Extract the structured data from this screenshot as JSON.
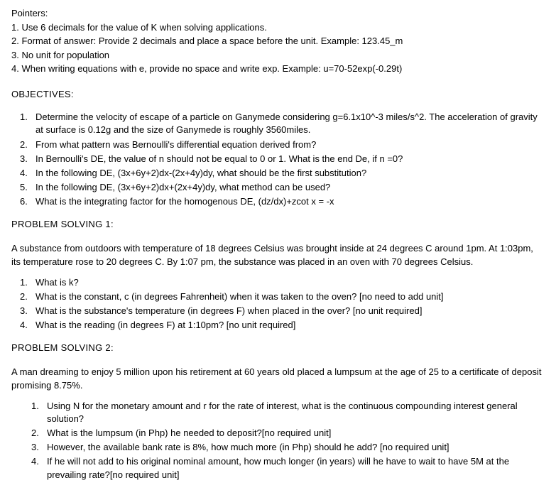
{
  "pointers": {
    "header": "Pointers:",
    "items": [
      "1. Use 6 decimals for the value of K when solving applications.",
      "2. Format of answer: Provide 2 decimals and place a space before the unit. Example: 123.45_m",
      "3. No unit for population",
      "4. When writing equations with e, provide no space and write exp.  Example: u=70-52exp(-0.29t)"
    ]
  },
  "objectivesHeader": "OBJECTIVES:",
  "objectives": [
    {
      "num": "1.",
      "txt": "Determine the velocity of escape of a particle on Ganymede considering g=6.1x10^-3 miles/s^2. The acceleration of gravity at surface is 0.12g and the size of Ganymede is roughly 3560miles."
    },
    {
      "num": "2.",
      "txt": "From what pattern was Bernoulli's differential equation derived from?"
    },
    {
      "num": "3.",
      "txt": "In Bernoulli's DE, the value of n should not be equal to 0 or 1. What is the end De, if n =0?"
    },
    {
      "num": "4.",
      "txt": "In the following DE, (3x+6y+2)dx-(2x+4y)dy, what should be the first substitution?"
    },
    {
      "num": "5.",
      "txt": "In the following DE, (3x+6y+2)dx+(2x+4y)dy, what method can be used?"
    },
    {
      "num": "6.",
      "txt": "What is the integrating factor for the homogenous DE, (dz/dx)+zcot x = -x"
    }
  ],
  "ps1": {
    "header": "PROBLEM SOLVING 1:",
    "para": "A substance from outdoors with temperature of 18 degrees Celsius was brought inside at 24 degrees C around 1pm. At 1:03pm, its temperature rose to 20 degrees C. By 1:07 pm, the substance was placed in an oven with 70 degrees Celsius.",
    "items": [
      {
        "num": "1.",
        "txt": "What is k?"
      },
      {
        "num": "2.",
        "txt": "What is the constant, c (in degrees Fahrenheit) when it was taken to the oven? [no need to add unit]"
      },
      {
        "num": "3.",
        "txt": "What is the substance's temperature (in degrees F) when placed in the over? [no unit required]"
      },
      {
        "num": "4.",
        "txt": "What is the reading (in degrees F) at 1:10pm? [no unit required]"
      }
    ]
  },
  "ps2": {
    "header": "PROBLEM SOLVING 2:",
    "para": "A man dreaming to enjoy 5 million upon his retirement at 60 years old placed a lumpsum at the age of 25 to a certificate of deposit promising 8.75%.",
    "items": [
      {
        "num": "1.",
        "txt": "Using N for the monetary amount and r for the rate of interest, what is the continuous compounding interest general solution?"
      },
      {
        "num": "2.",
        "txt": "What is the lumpsum (in Php) he needed to deposit?[no required unit]"
      },
      {
        "num": "3.",
        "txt": "However, the available bank rate is 8%, how much more (in Php) should he add? [no required unit]"
      },
      {
        "num": "4.",
        "txt": "If he will not add to his original nominal amount, how much longer (in years) will he have to wait to have 5M at the prevailing rate?[no required unit]"
      }
    ]
  }
}
